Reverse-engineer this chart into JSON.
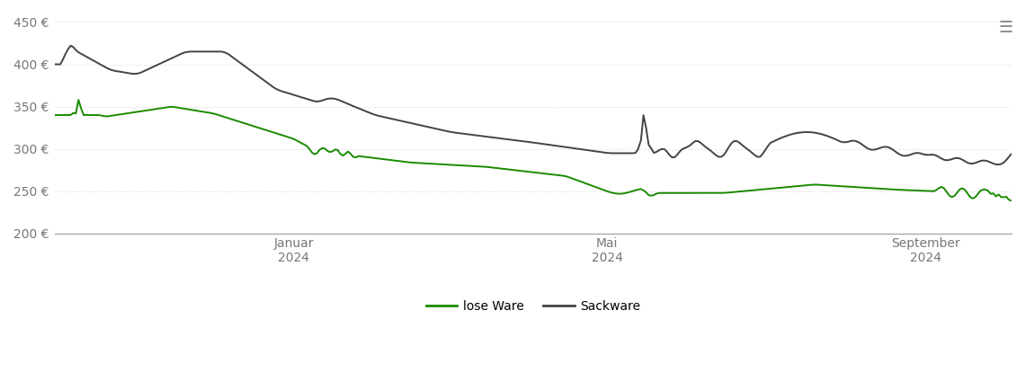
{
  "background_color": "#ffffff",
  "plot_bg_color": "#ffffff",
  "grid_color": "#d8d8d8",
  "ylim": [
    200,
    460
  ],
  "yticks": [
    200,
    250,
    300,
    350,
    400,
    450
  ],
  "ytick_labels": [
    "200 €",
    "250 €",
    "300 €",
    "350 €",
    "400 €",
    "450 €"
  ],
  "line_lose_color": "#1a8a00",
  "line_sack_color": "#444444",
  "line_width": 1.4,
  "legend_labels": [
    "lose Ware",
    "Sackware"
  ],
  "legend_colors": [
    "#1a8a00",
    "#444444"
  ]
}
